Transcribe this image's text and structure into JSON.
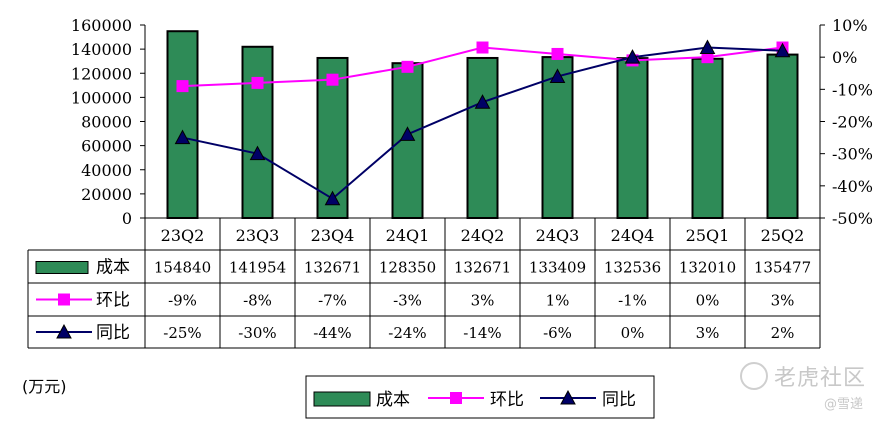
{
  "chart_data": {
    "type": "bar",
    "categories": [
      "23Q2",
      "23Q3",
      "23Q4",
      "24Q1",
      "24Q2",
      "24Q3",
      "24Q4",
      "25Q1",
      "25Q2"
    ],
    "series": [
      {
        "name": "成本",
        "type": "bar",
        "axis": "left",
        "color": "#2e8b57",
        "values": [
          154840,
          141954,
          132671,
          128350,
          132671,
          133409,
          132536,
          132010,
          135477
        ],
        "labels": [
          "154840",
          "141954",
          "132671",
          "128350",
          "132671",
          "133409",
          "132536",
          "132010",
          "135477"
        ]
      },
      {
        "name": "环比",
        "type": "line",
        "axis": "right",
        "color": "#ff00ff",
        "marker": "square",
        "values": [
          -9,
          -8,
          -7,
          -3,
          3,
          1,
          -1,
          0,
          3
        ],
        "labels": [
          "-9%",
          "-8%",
          "-7%",
          "-3%",
          "3%",
          "1%",
          "-1%",
          "0%",
          "3%"
        ]
      },
      {
        "name": "同比",
        "type": "line",
        "axis": "right",
        "color": "#000066",
        "marker": "triangle",
        "values": [
          -25,
          -30,
          -44,
          -24,
          -14,
          -6,
          0,
          3,
          2
        ],
        "labels": [
          "-25%",
          "-30%",
          "-44%",
          "-24%",
          "-14%",
          "-6%",
          "0%",
          "3%",
          "2%"
        ]
      }
    ],
    "y_left": {
      "min": 0,
      "max": 160000,
      "step": 20000,
      "ticks": [
        "0",
        "20000",
        "40000",
        "60000",
        "80000",
        "100000",
        "120000",
        "140000",
        "160000"
      ]
    },
    "y_right": {
      "min": -50,
      "max": 10,
      "step": 10,
      "ticks": [
        "10%",
        "0%",
        "-10%",
        "-20%",
        "-30%",
        "-40%",
        "-50%"
      ]
    },
    "unit": "(万元)",
    "legend": {
      "placement": "bottom-center",
      "items": [
        "成本",
        "环比",
        "同比"
      ]
    },
    "grid": false
  },
  "watermark": {
    "main": "老虎社区",
    "sub": "@雪递"
  }
}
